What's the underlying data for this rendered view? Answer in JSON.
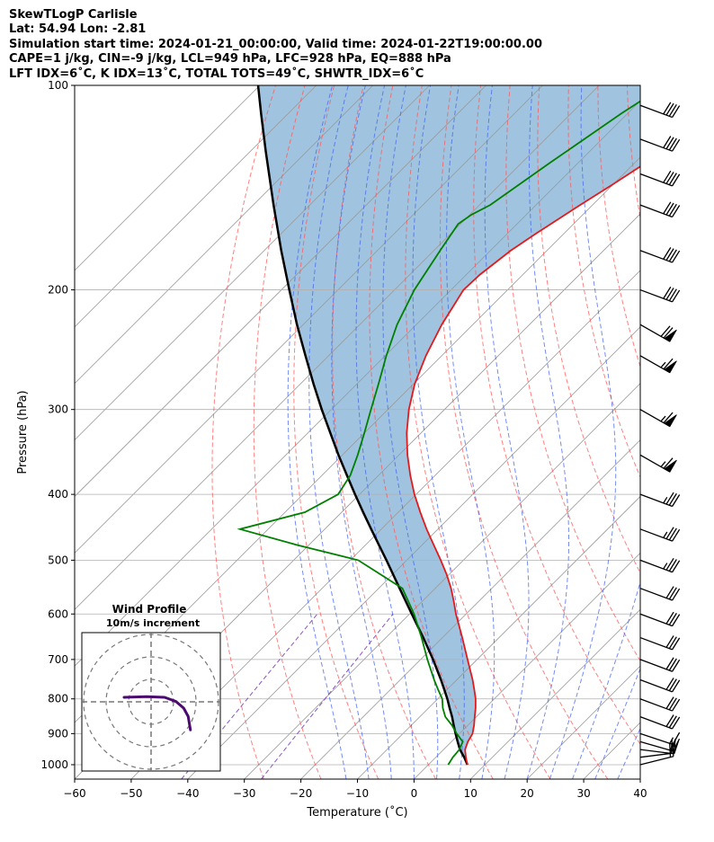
{
  "header": {
    "lines": [
      "SkewTLogP Carlisle",
      "Lat: 54.94   Lon: -2.81",
      "Simulation start time: 2024-01-21_00:00:00, Valid time: 2024-01-22T19:00:00.00",
      "CAPE=1 j/kg, CIN=-9 j/kg, LCL=949 hPa, LFC=928 hPa, EQ=888 hPa",
      "LFT IDX=6˚C, K IDX=13˚C, TOTAL TOTS=49˚C, SHWTR_IDX=6˚C"
    ]
  },
  "chart_data": {
    "type": "line",
    "xlabel": "Temperature (˚C)",
    "ylabel": "Pressure (hPa)",
    "xlim": [
      -60,
      40
    ],
    "ylim": [
      1050,
      100
    ],
    "y_scale": "log",
    "skew_degrees": 45,
    "x_ticks": [
      -60,
      -50,
      -40,
      -30,
      -20,
      -10,
      0,
      10,
      20,
      30,
      40
    ],
    "x_tick_labels": [
      "−60",
      "−50",
      "−40",
      "−30",
      "−20",
      "−10",
      "0",
      "10",
      "20",
      "30",
      "40"
    ],
    "y_ticks": [
      1000,
      900,
      800,
      700,
      600,
      500,
      400,
      300,
      200,
      100
    ],
    "y_tick_labels": [
      "1000",
      "900",
      "800",
      "700",
      "600",
      "500",
      "400",
      "300",
      "200",
      "100"
    ],
    "grid": true,
    "colors": {
      "temperature": "#e31a1c",
      "dewpoint": "#008000",
      "parcel": "#000000",
      "cape_fill": "#a0c4df",
      "dry_adiabat": "#ff5555",
      "moist_adiabat": "#4466ee",
      "mixing_ratio": "#8040c0",
      "isotherm": "#999999",
      "hodograph": "#4b0a6e"
    },
    "series": [
      {
        "type": "temperature",
        "pressure": [
          1000,
          975,
          950,
          925,
          900,
          875,
          850,
          825,
          800,
          775,
          750,
          700,
          650,
          600,
          575,
          550,
          525,
          500,
          475,
          450,
          425,
          400,
          375,
          350,
          325,
          300,
          275,
          250,
          225,
          200,
          190,
          175,
          165,
          150,
          140,
          125,
          110,
          100
        ],
        "temp": [
          6.9,
          5.3,
          3.8,
          2.9,
          2.3,
          1.1,
          -0.3,
          -1.7,
          -3.3,
          -5.2,
          -7.2,
          -11.7,
          -16.5,
          -21.8,
          -24.4,
          -27.2,
          -30.4,
          -34.0,
          -37.9,
          -42.0,
          -46.1,
          -50.3,
          -54.4,
          -58.5,
          -62.5,
          -66.3,
          -69.8,
          -72.8,
          -75.5,
          -77.8,
          -77.6,
          -76.4,
          -74.9,
          -72.2,
          -70.1,
          -66.9,
          -62.6,
          -59.7
        ]
      },
      {
        "type": "dewpoint",
        "pressure": [
          1000,
          975,
          950,
          925,
          900,
          875,
          850,
          825,
          800,
          775,
          750,
          700,
          650,
          600,
          550,
          500,
          475,
          450,
          425,
          400,
          375,
          350,
          325,
          300,
          275,
          250,
          225,
          200,
          175,
          160,
          155,
          150,
          130,
          110,
          100
        ],
        "temp": [
          3.5,
          3.0,
          2.8,
          2.0,
          -0.5,
          -2.8,
          -5.5,
          -7.5,
          -9.2,
          -11.6,
          -14.0,
          -18.8,
          -23.7,
          -29.2,
          -35.8,
          -48.6,
          -62.0,
          -75.0,
          -66.5,
          -63.8,
          -65.0,
          -67.3,
          -70.0,
          -73.0,
          -76.2,
          -79.8,
          -83.4,
          -86.5,
          -88.9,
          -90.4,
          -89.7,
          -88.1,
          -85.0,
          -81.1,
          -78.4
        ]
      },
      {
        "type": "parcel",
        "pressure": [
          1000,
          975,
          950,
          925,
          900,
          875,
          850,
          825,
          800,
          775,
          750,
          700,
          650,
          600,
          550,
          500,
          475,
          450,
          425,
          400,
          375,
          350,
          325,
          300,
          275,
          250,
          225,
          200,
          175,
          150,
          125,
          110,
          100
        ],
        "temp": [
          6.9,
          5.0,
          2.9,
          1.1,
          -0.7,
          -2.5,
          -4.3,
          -6.3,
          -8.3,
          -10.5,
          -12.8,
          -17.8,
          -23.4,
          -29.6,
          -36.3,
          -43.6,
          -47.6,
          -51.8,
          -56.2,
          -60.8,
          -65.6,
          -70.7,
          -76.0,
          -81.7,
          -87.7,
          -94.1,
          -101.1,
          -108.6,
          -117.0,
          -126.4,
          -137.3,
          -144.8,
          -150.3
        ]
      }
    ],
    "wind_barbs": [
      {
        "pressure": 1000,
        "u": -8,
        "v": -2,
        "speed_kt": 22
      },
      {
        "pressure": 975,
        "u": -8,
        "v": -1,
        "speed_kt": 20
      },
      {
        "pressure": 950,
        "u": -8,
        "v": 1,
        "speed_kt": 20
      },
      {
        "pressure": 925,
        "u": -7,
        "v": 2,
        "speed_kt": 20
      },
      {
        "pressure": 900,
        "u": -6,
        "v": 2,
        "speed_kt": 15
      },
      {
        "pressure": 850,
        "u": -8,
        "v": 3,
        "speed_kt": 30
      },
      {
        "pressure": 800,
        "u": -8,
        "v": 3,
        "speed_kt": 30
      },
      {
        "pressure": 750,
        "u": -8,
        "v": 3,
        "speed_kt": 30
      },
      {
        "pressure": 700,
        "u": -8,
        "v": 3,
        "speed_kt": 30
      },
      {
        "pressure": 650,
        "u": -8,
        "v": 3,
        "speed_kt": 30
      },
      {
        "pressure": 600,
        "u": -8,
        "v": 3,
        "speed_kt": 30
      },
      {
        "pressure": 550,
        "u": -8,
        "v": 3,
        "speed_kt": 30
      },
      {
        "pressure": 500,
        "u": -8,
        "v": 3,
        "speed_kt": 35
      },
      {
        "pressure": 450,
        "u": -8,
        "v": 3,
        "speed_kt": 35
      },
      {
        "pressure": 400,
        "u": -8,
        "v": 3,
        "speed_kt": 35
      },
      {
        "pressure": 350,
        "u": -7,
        "v": 4,
        "speed_kt": 65
      },
      {
        "pressure": 300,
        "u": -7,
        "v": 4,
        "speed_kt": 65
      },
      {
        "pressure": 250,
        "u": -7,
        "v": 4,
        "speed_kt": 65
      },
      {
        "pressure": 225,
        "u": -7,
        "v": 4,
        "speed_kt": 70
      },
      {
        "pressure": 200,
        "u": -8,
        "v": 3,
        "speed_kt": 40
      },
      {
        "pressure": 175,
        "u": -8,
        "v": 3,
        "speed_kt": 40
      },
      {
        "pressure": 150,
        "u": -8,
        "v": 3,
        "speed_kt": 40
      },
      {
        "pressure": 135,
        "u": -8,
        "v": 3,
        "speed_kt": 40
      },
      {
        "pressure": 120,
        "u": -8,
        "v": 3,
        "speed_kt": 40
      },
      {
        "pressure": 107,
        "u": -8,
        "v": 3,
        "speed_kt": 40
      }
    ],
    "hodograph": {
      "title": "Wind Profile",
      "subtitle": "10m/s increment",
      "rings_ms": [
        10,
        20,
        30
      ],
      "u": [
        -12,
        -2,
        6,
        11,
        14.5,
        16.5,
        17,
        17.5
      ],
      "v": [
        2,
        2.3,
        2.0,
        0.2,
        -2.8,
        -6.5,
        -9.5,
        -12.5
      ]
    }
  }
}
